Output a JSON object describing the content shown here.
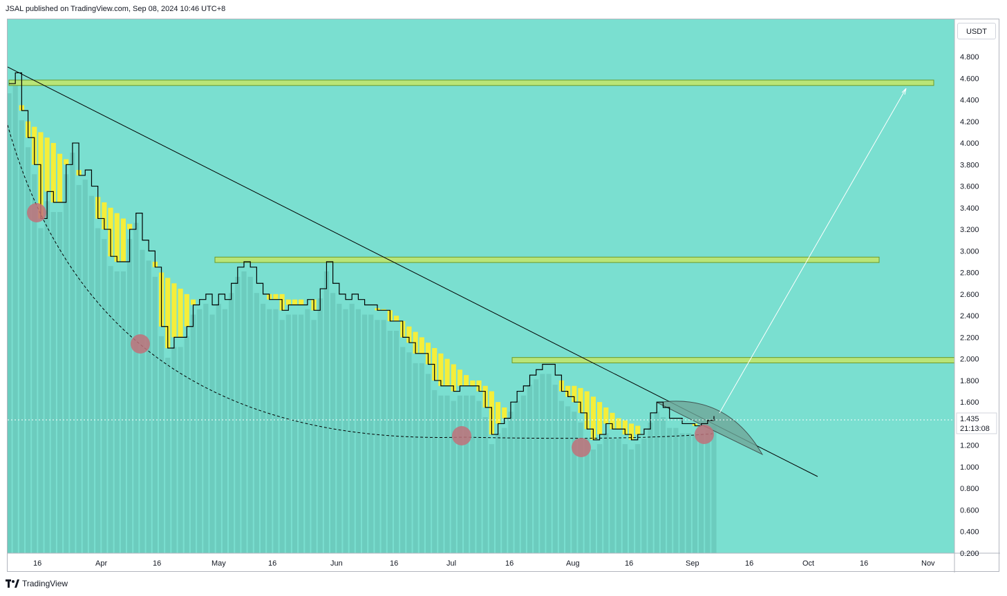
{
  "header": {
    "published_text": "JSAL published on TradingView.com, Sep 08, 2024 10:46 UTC+8"
  },
  "footer": {
    "brand": "TradingView",
    "logo_icon": "tradingview-logo-icon"
  },
  "currency": "USDT",
  "colors": {
    "background": "#7adfd0",
    "volume_bars": "#6ac9bb",
    "cloud": "#f5ee3a",
    "zone_fill": "#b9e577",
    "zone_border": "#6b9a2a",
    "price_line": "#000000",
    "marker": "#c0717a",
    "arc_fill": "#6fa89a"
  },
  "chart_data": {
    "type": "line",
    "ylim": [
      0.2,
      4.9
    ],
    "y_ticks": [
      "0.200",
      "0.400",
      "0.600",
      "0.800",
      "1.000",
      "1.200",
      "1.400",
      "1.600",
      "1.800",
      "2.000",
      "2.200",
      "2.400",
      "2.600",
      "2.800",
      "3.000",
      "3.200",
      "3.400",
      "3.600",
      "3.800",
      "4.000",
      "4.200",
      "4.400",
      "4.600",
      "4.800"
    ],
    "x_ticks": [
      "16",
      "Apr",
      "16",
      "May",
      "16",
      "Jun",
      "16",
      "Jul",
      "16",
      "Aug",
      "16",
      "Sep",
      "16",
      "Oct",
      "16",
      "Nov"
    ],
    "last_price": "1.435",
    "countdown": "21:13:08",
    "series": [
      {
        "values": [
          4.55,
          4.65,
          4.3,
          4.05,
          3.8,
          3.3,
          3.55,
          3.45,
          3.45,
          3.8,
          4.0,
          3.7,
          3.75,
          3.6,
          3.3,
          3.2,
          2.95,
          2.9,
          2.9,
          3.2,
          3.35,
          3.1,
          3.0,
          2.85,
          2.3,
          2.1,
          2.2,
          2.2,
          2.3,
          2.5,
          2.55,
          2.6,
          2.5,
          2.6,
          2.55,
          2.7,
          2.85,
          2.9,
          2.85,
          2.7,
          2.6,
          2.55,
          2.55,
          2.45,
          2.5,
          2.5,
          2.5,
          2.55,
          2.45,
          2.65,
          2.9,
          2.7,
          2.6,
          2.55,
          2.6,
          2.55,
          2.5,
          2.5,
          2.45,
          2.45,
          2.35,
          2.35,
          2.2,
          2.15,
          2.05,
          2.05,
          1.95,
          1.8,
          1.75,
          1.75,
          1.7,
          1.75,
          1.75,
          1.75,
          1.7,
          1.55,
          1.3,
          1.4,
          1.45,
          1.6,
          1.7,
          1.75,
          1.85,
          1.9,
          1.95,
          1.95,
          1.85,
          1.7,
          1.65,
          1.6,
          1.5,
          1.35,
          1.25,
          1.3,
          1.4,
          1.35,
          1.35,
          1.3,
          1.25,
          1.3,
          1.35,
          1.5,
          1.6,
          1.55,
          1.45,
          1.45,
          1.4,
          1.4,
          1.38,
          1.4,
          1.43,
          1.47
        ]
      },
      {
        "values": [
          4.55,
          4.55,
          4.35,
          4.2,
          4.15,
          4.1,
          4.05,
          4.0,
          3.9,
          3.85,
          3.8,
          3.75,
          3.7,
          3.6,
          3.5,
          3.45,
          3.4,
          3.35,
          3.3,
          3.25,
          3.2,
          3.1,
          3.0,
          2.9,
          2.8,
          2.75,
          2.7,
          2.65,
          2.6,
          2.55,
          2.5,
          2.48,
          2.45,
          2.45,
          2.45,
          2.5,
          2.6,
          2.65,
          2.65,
          2.6,
          2.6,
          2.6,
          2.6,
          2.6,
          2.55,
          2.55,
          2.55,
          2.55,
          2.55,
          2.55,
          2.55,
          2.5,
          2.5,
          2.5,
          2.5,
          2.5,
          2.5,
          2.48,
          2.47,
          2.46,
          2.45,
          2.4,
          2.35,
          2.3,
          2.25,
          2.2,
          2.15,
          2.1,
          2.05,
          2.0,
          1.95,
          1.9,
          1.85,
          1.8,
          1.8,
          1.75,
          1.7,
          1.6,
          1.55,
          1.6,
          1.7,
          1.75,
          1.8,
          1.85,
          1.9,
          1.9,
          1.85,
          1.8,
          1.75,
          1.75,
          1.73,
          1.7,
          1.65,
          1.6,
          1.55,
          1.5,
          1.45,
          1.43,
          1.4,
          1.38,
          1.35,
          1.4,
          1.45,
          1.45,
          1.45,
          1.43,
          1.4,
          1.4,
          1.4,
          1.4,
          1.4,
          1.4
        ]
      }
    ],
    "zones": [
      {
        "low": 4.52,
        "high": 4.57
      },
      {
        "low": 2.88,
        "high": 2.93
      },
      {
        "low": 1.95,
        "high": 2.0
      }
    ]
  }
}
